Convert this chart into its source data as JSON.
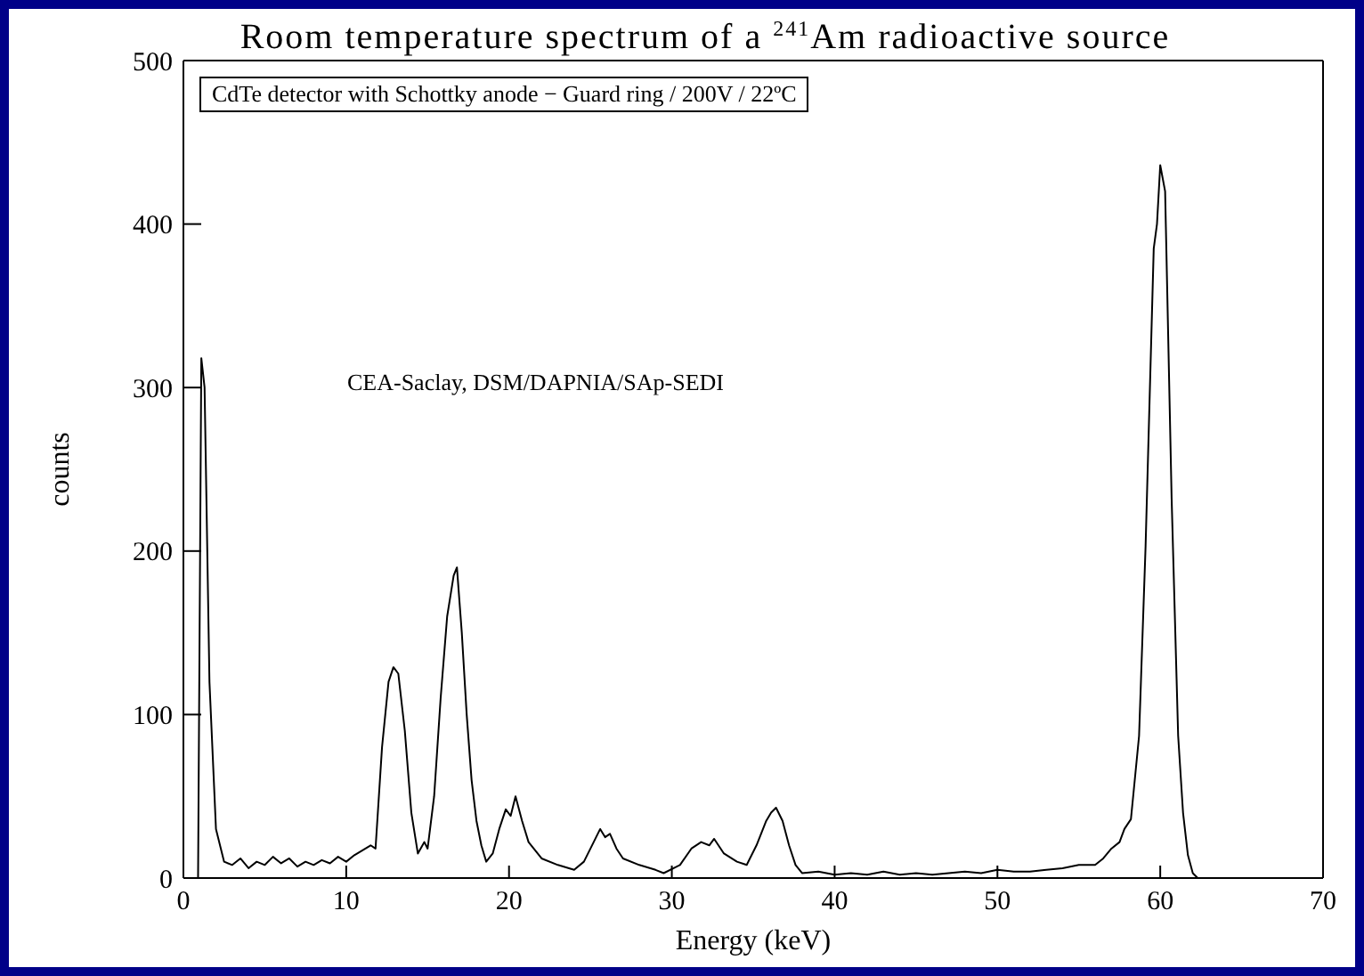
{
  "chart_data": {
    "type": "line",
    "title": "Room temperature spectrum of a $^{241}$Am radioactive source",
    "xlabel": "Energy (keV)",
    "ylabel": "counts",
    "annotations": [
      "CdTe detector with Schottky anode − Guard ring / 200V / 22ºC",
      "CEA-Saclay, DSM/DAPNIA/SAp-SEDI"
    ],
    "xlim": [
      0,
      70
    ],
    "ylim": [
      0,
      500
    ],
    "xticks": [
      0,
      10,
      20,
      30,
      40,
      50,
      60,
      70
    ],
    "yticks": [
      0,
      100,
      200,
      300,
      400,
      500
    ],
    "marker": "none",
    "line_style": "solid",
    "series": [
      {
        "color": "#000000",
        "x": [
          0.9,
          1.1,
          1.3,
          1.6,
          2.0,
          2.5,
          3.0,
          3.5,
          4.0,
          4.5,
          5.0,
          5.5,
          6.0,
          6.5,
          7.0,
          7.5,
          8.0,
          8.5,
          9.0,
          9.5,
          10.0,
          10.5,
          11.0,
          11.5,
          11.8,
          12.2,
          12.6,
          12.9,
          13.2,
          13.6,
          14.0,
          14.4,
          14.8,
          15.0,
          15.4,
          15.8,
          16.2,
          16.6,
          16.8,
          17.1,
          17.4,
          17.7,
          18.0,
          18.3,
          18.6,
          19.0,
          19.4,
          19.8,
          20.1,
          20.4,
          20.8,
          21.2,
          22.0,
          23.0,
          24.0,
          24.6,
          25.2,
          25.6,
          25.9,
          26.2,
          26.6,
          27.0,
          28.0,
          29.0,
          29.5,
          30.5,
          31.2,
          31.8,
          32.3,
          32.6,
          33.2,
          34.0,
          34.6,
          35.2,
          35.8,
          36.1,
          36.4,
          36.8,
          37.2,
          37.6,
          38.0,
          39.0,
          40.0,
          41.0,
          42.0,
          43.0,
          44.0,
          45.0,
          46.0,
          47.0,
          48.0,
          49.0,
          50.0,
          51.0,
          52.0,
          53.0,
          54.0,
          55.0,
          56.0,
          56.5,
          57.0,
          57.5,
          57.8,
          58.2,
          58.7,
          59.1,
          59.6,
          59.8,
          60.0,
          60.3,
          60.7,
          61.1,
          61.4,
          61.7,
          62.0,
          62.3
        ],
        "values": [
          0,
          318,
          300,
          120,
          30,
          10,
          8,
          12,
          6,
          10,
          8,
          13,
          9,
          12,
          7,
          10,
          8,
          11,
          9,
          13,
          10,
          14,
          17,
          20,
          18,
          80,
          120,
          129,
          125,
          90,
          40,
          15,
          22,
          18,
          50,
          110,
          160,
          185,
          190,
          150,
          100,
          60,
          35,
          20,
          10,
          15,
          30,
          42,
          38,
          50,
          35,
          22,
          12,
          8,
          5,
          10,
          22,
          30,
          25,
          27,
          18,
          12,
          8,
          5,
          3,
          8,
          18,
          22,
          20,
          24,
          15,
          10,
          8,
          20,
          35,
          40,
          43,
          35,
          20,
          8,
          3,
          4,
          2,
          3,
          2,
          4,
          2,
          3,
          2,
          3,
          4,
          3,
          5,
          4,
          4,
          5,
          6,
          8,
          8,
          12,
          18,
          22,
          30,
          36,
          87,
          203,
          385,
          400,
          436,
          420,
          232,
          87,
          40,
          14,
          3,
          0
        ]
      }
    ]
  }
}
